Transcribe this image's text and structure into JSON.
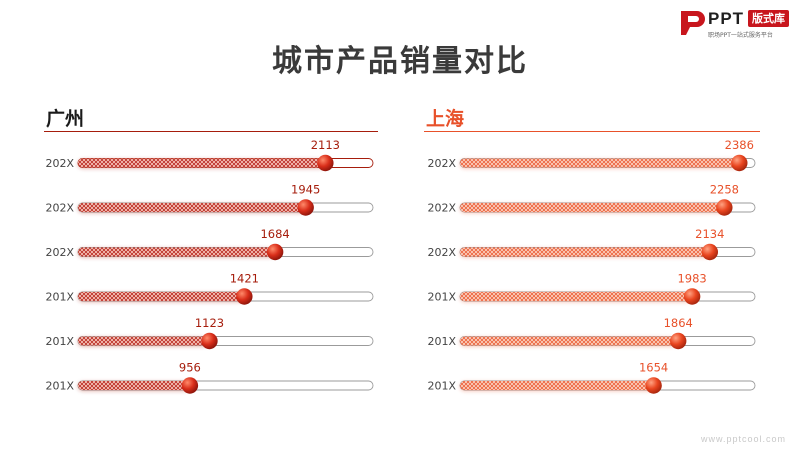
{
  "logo": {
    "brand": "PPT",
    "badge": "版式库",
    "tagline": "职场PPT一站式服务平台"
  },
  "title": "城市产品销量对比",
  "watermark": "www.pptcool.com",
  "colors": {
    "guangzhou": "#a61d0c",
    "shanghai": "#e8512a",
    "track": "#9b9b9b"
  },
  "chart_data": [
    {
      "type": "bar",
      "title": "广州",
      "categories": [
        "202X",
        "202X",
        "202X",
        "201X",
        "201X",
        "201X"
      ],
      "values": [
        2113,
        1945,
        1684,
        1421,
        1123,
        956
      ],
      "xlim": [
        0,
        2520
      ]
    },
    {
      "type": "bar",
      "title": "上海",
      "categories": [
        "202X",
        "202X",
        "202X",
        "201X",
        "201X",
        "201X"
      ],
      "values": [
        2386,
        2258,
        2134,
        1983,
        1864,
        1654
      ],
      "xlim": [
        0,
        2520
      ]
    }
  ]
}
